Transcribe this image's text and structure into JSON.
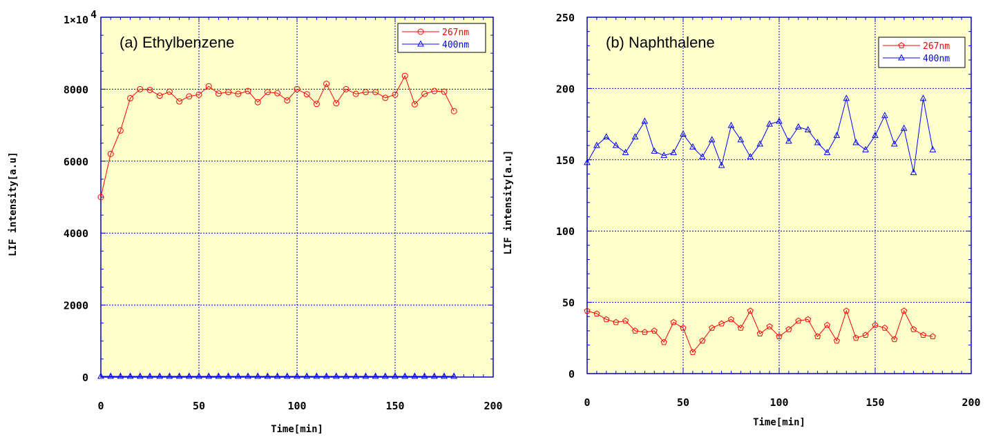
{
  "chart_data": [
    {
      "type": "line",
      "title": "(a) Ethylbenzene",
      "xlabel": "Time[min]",
      "ylabel": "LIF intensity[a.u]",
      "xlim": [
        0,
        200
      ],
      "ylim": [
        0,
        10000
      ],
      "xticks": [
        "0",
        "50",
        "100",
        "150",
        "200"
      ],
      "yticks": [
        "0",
        "2000",
        "4000",
        "6000",
        "8000"
      ],
      "ytop_label": "1×10",
      "ytop_exp": "4",
      "grid": true,
      "legend_position": "top-right",
      "background": "#ffffcc",
      "x": [
        0,
        5,
        10,
        15,
        20,
        25,
        30,
        35,
        40,
        45,
        50,
        55,
        60,
        65,
        70,
        75,
        80,
        85,
        90,
        95,
        100,
        105,
        110,
        115,
        120,
        125,
        130,
        135,
        140,
        145,
        150,
        155,
        160,
        165,
        170,
        175,
        180
      ],
      "series": [
        {
          "name": "267nm",
          "color": "#ff0000",
          "marker": "circle",
          "values": [
            5000,
            6200,
            6850,
            7750,
            8000,
            7980,
            7820,
            7930,
            7660,
            7800,
            7850,
            8080,
            7880,
            7920,
            7870,
            7950,
            7640,
            7920,
            7890,
            7690,
            8000,
            7860,
            7590,
            8150,
            7610,
            8000,
            7870,
            7920,
            7920,
            7760,
            7850,
            8370,
            7580,
            7870,
            7950,
            7930,
            7390
          ]
        },
        {
          "name": "400nm",
          "color": "#0000ff",
          "marker": "triangle",
          "values": [
            20,
            20,
            20,
            20,
            20,
            20,
            20,
            20,
            20,
            20,
            20,
            20,
            20,
            20,
            20,
            20,
            20,
            20,
            20,
            20,
            20,
            20,
            20,
            20,
            20,
            20,
            20,
            20,
            20,
            20,
            20,
            20,
            20,
            20,
            20,
            20,
            20
          ]
        }
      ]
    },
    {
      "type": "line",
      "title": "(b) Naphthalene",
      "xlabel": "Time[min]",
      "ylabel": "LIF intensity[a.u]",
      "xlim": [
        0,
        200
      ],
      "ylim": [
        0,
        250
      ],
      "xticks": [
        "0",
        "50",
        "100",
        "150",
        "200"
      ],
      "yticks": [
        "0",
        "50",
        "100",
        "150",
        "200",
        "250"
      ],
      "grid": true,
      "legend_position": "top-right",
      "background": "#ffffcc",
      "x": [
        0,
        5,
        10,
        15,
        20,
        25,
        30,
        35,
        40,
        45,
        50,
        55,
        60,
        65,
        70,
        75,
        80,
        85,
        90,
        95,
        100,
        105,
        110,
        115,
        120,
        125,
        130,
        135,
        140,
        145,
        150,
        155,
        160,
        165,
        170,
        175,
        180
      ],
      "series": [
        {
          "name": "267nm",
          "color": "#ff0000",
          "marker": "pentagon",
          "values": [
            44,
            42,
            38,
            36,
            37,
            30,
            29,
            30,
            22,
            36,
            32,
            15,
            23,
            32,
            35,
            38,
            32,
            44,
            28,
            33,
            26,
            31,
            37,
            38,
            26,
            34,
            23,
            44,
            25,
            27,
            34,
            32,
            24,
            44,
            31,
            27,
            26
          ]
        },
        {
          "name": "400nm",
          "color": "#0000ff",
          "marker": "triangle",
          "values": [
            148,
            160,
            166,
            160,
            155,
            166,
            177,
            156,
            153,
            155,
            168,
            159,
            152,
            164,
            146,
            174,
            164,
            152,
            161,
            175,
            177,
            163,
            173,
            171,
            162,
            155,
            167,
            193,
            162,
            157,
            167,
            181,
            161,
            172,
            141,
            193,
            157
          ]
        }
      ]
    }
  ]
}
